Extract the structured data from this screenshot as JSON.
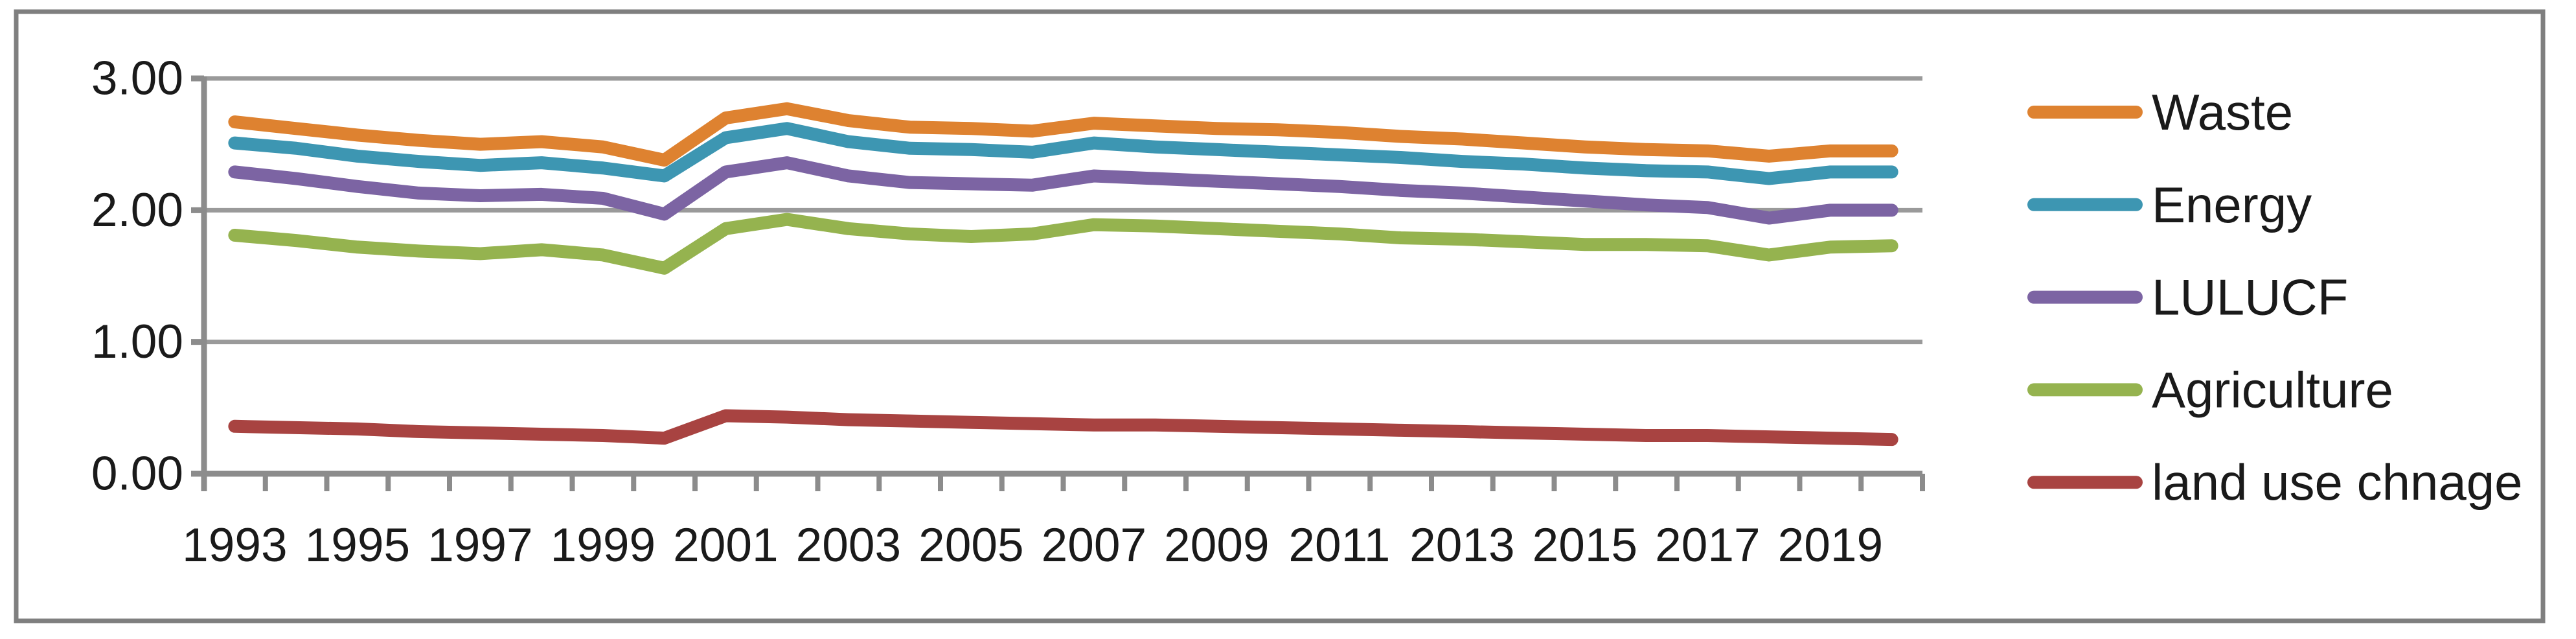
{
  "figure": {
    "background": "#ffffff",
    "frame_color": "#7f7f7f",
    "gridline_color": "#9a9a9a",
    "axis_color": "#8c8c8c",
    "text_color": "#1a1a1a"
  },
  "chart_data": {
    "type": "line",
    "title": "",
    "xlabel": "",
    "ylabel": "",
    "x": [
      1993,
      1994,
      1995,
      1996,
      1997,
      1998,
      1999,
      2000,
      2001,
      2002,
      2003,
      2004,
      2005,
      2006,
      2007,
      2008,
      2009,
      2010,
      2011,
      2012,
      2013,
      2014,
      2015,
      2016,
      2017,
      2018,
      2019,
      2020
    ],
    "x_tick_labels": [
      "1993",
      "1995",
      "1997",
      "1999",
      "2001",
      "2003",
      "2005",
      "2007",
      "2009",
      "2011",
      "2013",
      "2015",
      "2017",
      "2019"
    ],
    "y_tick_labels": [
      "0.00",
      "1.00",
      "2.00",
      "3.00"
    ],
    "ylim": [
      0,
      3
    ],
    "grid": "horizontal",
    "legend_position": "right",
    "series": [
      {
        "name": "Waste",
        "color": "#de8230",
        "values": [
          2.67,
          2.62,
          2.57,
          2.53,
          2.5,
          2.52,
          2.48,
          2.38,
          2.7,
          2.77,
          2.68,
          2.63,
          2.62,
          2.6,
          2.66,
          2.64,
          2.62,
          2.61,
          2.59,
          2.56,
          2.54,
          2.51,
          2.48,
          2.46,
          2.45,
          2.41,
          2.45,
          2.45
        ]
      },
      {
        "name": "Energy",
        "color": "#3d96b2",
        "values": [
          2.51,
          2.47,
          2.41,
          2.37,
          2.34,
          2.36,
          2.32,
          2.26,
          2.55,
          2.62,
          2.52,
          2.47,
          2.46,
          2.44,
          2.51,
          2.48,
          2.46,
          2.44,
          2.42,
          2.4,
          2.37,
          2.35,
          2.32,
          2.3,
          2.29,
          2.24,
          2.29,
          2.29
        ]
      },
      {
        "name": "LULUCF",
        "color": "#7c64a3",
        "values": [
          2.29,
          2.24,
          2.18,
          2.13,
          2.11,
          2.12,
          2.09,
          1.97,
          2.29,
          2.36,
          2.26,
          2.21,
          2.2,
          2.19,
          2.26,
          2.24,
          2.22,
          2.2,
          2.18,
          2.15,
          2.13,
          2.1,
          2.07,
          2.04,
          2.02,
          1.94,
          2.0,
          2.0
        ]
      },
      {
        "name": "Agriculture",
        "color": "#95b34f",
        "values": [
          1.81,
          1.77,
          1.72,
          1.69,
          1.67,
          1.7,
          1.66,
          1.56,
          1.86,
          1.93,
          1.86,
          1.82,
          1.8,
          1.82,
          1.89,
          1.88,
          1.86,
          1.84,
          1.82,
          1.79,
          1.78,
          1.76,
          1.74,
          1.74,
          1.73,
          1.66,
          1.72,
          1.73
        ]
      },
      {
        "name": "land use chnage",
        "color": "#a84341",
        "values": [
          0.36,
          0.35,
          0.34,
          0.32,
          0.31,
          0.3,
          0.29,
          0.27,
          0.44,
          0.43,
          0.41,
          0.4,
          0.39,
          0.38,
          0.37,
          0.37,
          0.36,
          0.35,
          0.34,
          0.33,
          0.32,
          0.31,
          0.3,
          0.29,
          0.29,
          0.28,
          0.27,
          0.26
        ]
      }
    ]
  }
}
